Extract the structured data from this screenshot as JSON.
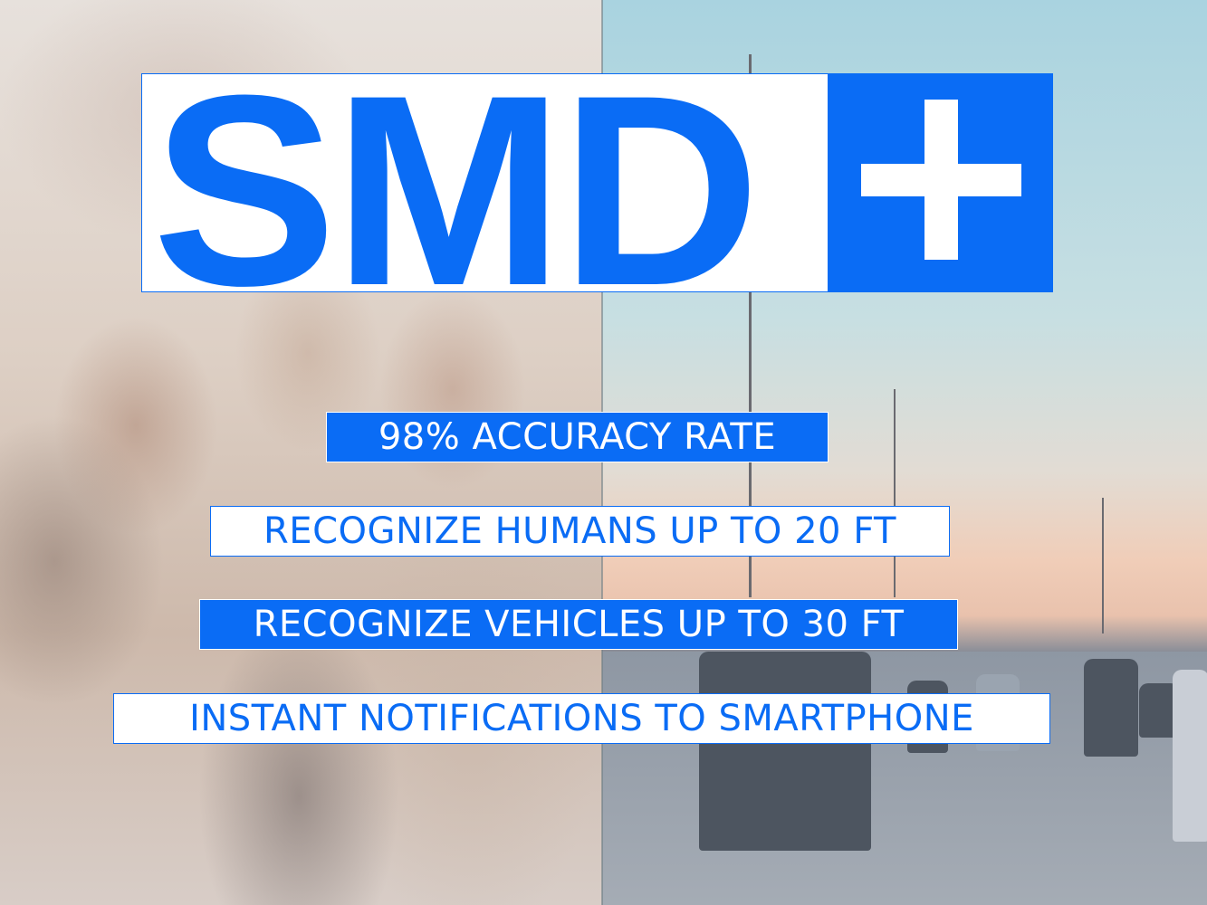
{
  "logo": {
    "text": "SMD",
    "symbol": "plus",
    "brand_color": "#0a6cf5"
  },
  "features": [
    {
      "label": "98% ACCURACY RATE",
      "style": "blue"
    },
    {
      "label": "RECOGNIZE HUMANS UP TO 20 FT",
      "style": "white"
    },
    {
      "label": "RECOGNIZE VEHICLES UP TO 30 FT",
      "style": "blue"
    },
    {
      "label": "INSTANT NOTIFICATIONS TO SMARTPHONE",
      "style": "white"
    }
  ]
}
